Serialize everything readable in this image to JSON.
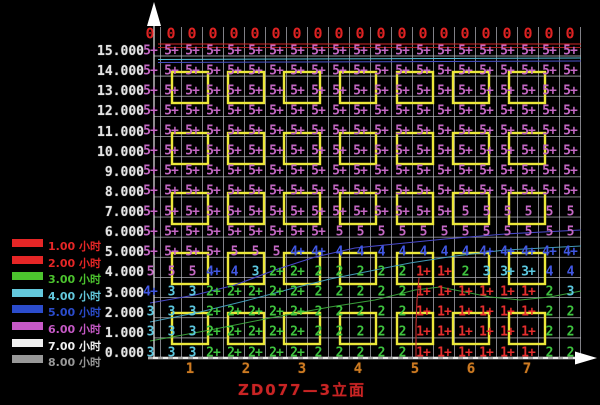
{
  "title": "ZD077—3立面",
  "legend": {
    "items": [
      {
        "label": "1.00 小时",
        "color": "#e62626"
      },
      {
        "label": "2.00 小时",
        "color": "#e62626"
      },
      {
        "label": "3.00 小时",
        "color": "#4cc42e"
      },
      {
        "label": "4.00 小时",
        "color": "#63c8dc"
      },
      {
        "label": "5.00 小时",
        "color": "#2b4ccc"
      },
      {
        "label": "6.00 小时",
        "color": "#c659c6"
      },
      {
        "label": "7.00 小时",
        "color": "#f0f0f0"
      },
      {
        "label": "8.00 小时",
        "color": "#989898"
      }
    ]
  },
  "y_axis": {
    "labels": [
      "15.000",
      "14.000",
      "13.000",
      "12.000",
      "11.000",
      "10.000",
      "9.000",
      "8.000",
      "7.000",
      "6.000",
      "5.000",
      "4.000",
      "3.000",
      "2.000",
      "1.000",
      "0.000"
    ]
  },
  "x_axis": {
    "labels": [
      "1",
      "2",
      "3",
      "4",
      "5",
      "6",
      "7"
    ]
  },
  "roof_row": {
    "values": [
      "0",
      "0",
      "0",
      "0",
      "0",
      "0",
      "0",
      "0",
      "0",
      "0",
      "0",
      "0",
      "0",
      "0",
      "0",
      "0",
      "0",
      "0",
      "0",
      "0",
      "0"
    ]
  },
  "chart_data": {
    "type": "heatmap",
    "title": "ZD077—3立面",
    "description": "Sunlight-hours analysis grid on a building elevation; each cell shows insolation hours at that point, colored by duration; yellow rectangles are window outlines.",
    "columns": 21,
    "value_colors": {
      "5": "#c468c4",
      "4": "#4157e3",
      "3": "#5cc8e0",
      "2": "#3fc43f",
      "1": "#e62e2e",
      "0": "#dd2222"
    },
    "rows": [
      {
        "level": "15.000",
        "values": [
          "5+",
          "5+",
          "5+",
          "5+",
          "5+",
          "5+",
          "5+",
          "5+",
          "5+",
          "5+",
          "5+",
          "5+",
          "5+",
          "5+",
          "5+",
          "5+",
          "5+",
          "5+",
          "5+",
          "5+",
          "5+"
        ]
      },
      {
        "level": "14.000",
        "values": [
          "5+",
          "5+",
          "5+",
          "5+",
          "5+",
          "5+",
          "5+",
          "5+",
          "5+",
          "5+",
          "5+",
          "5+",
          "5+",
          "5+",
          "5+",
          "5+",
          "5+",
          "5+",
          "5+",
          "5+",
          "5+"
        ]
      },
      {
        "level": "13.000",
        "values": [
          "5+",
          "5+",
          "5+",
          "5+",
          "5+",
          "5+",
          "5+",
          "5+",
          "5+",
          "5+",
          "5+",
          "5+",
          "5+",
          "5+",
          "5+",
          "5+",
          "5+",
          "5+",
          "5+",
          "5+",
          "5+"
        ]
      },
      {
        "level": "12.000",
        "values": [
          "5+",
          "5+",
          "5+",
          "5+",
          "5+",
          "5+",
          "5+",
          "5+",
          "5+",
          "5+",
          "5+",
          "5+",
          "5+",
          "5+",
          "5+",
          "5+",
          "5+",
          "5+",
          "5+",
          "5+",
          "5+"
        ]
      },
      {
        "level": "11.000",
        "values": [
          "5+",
          "5+",
          "5+",
          "5+",
          "5+",
          "5+",
          "5+",
          "5+",
          "5+",
          "5+",
          "5+",
          "5+",
          "5+",
          "5+",
          "5+",
          "5+",
          "5+",
          "5+",
          "5+",
          "5+",
          "5+"
        ]
      },
      {
        "level": "10.000",
        "values": [
          "5+",
          "5+",
          "5+",
          "5+",
          "5+",
          "5+",
          "5+",
          "5+",
          "5+",
          "5+",
          "5+",
          "5+",
          "5+",
          "5+",
          "5+",
          "5+",
          "5+",
          "5+",
          "5+",
          "5+",
          "5+"
        ]
      },
      {
        "level": "9.000",
        "values": [
          "5+",
          "5+",
          "5+",
          "5+",
          "5+",
          "5+",
          "5+",
          "5+",
          "5+",
          "5+",
          "5+",
          "5+",
          "5+",
          "5+",
          "5+",
          "5+",
          "5+",
          "5+",
          "5+",
          "5+",
          "5+"
        ]
      },
      {
        "level": "8.000",
        "values": [
          "5+",
          "5+",
          "5+",
          "5+",
          "5+",
          "5+",
          "5+",
          "5+",
          "5+",
          "5+",
          "5+",
          "5+",
          "5+",
          "5+",
          "5+",
          "5+",
          "5+",
          "5+",
          "5+",
          "5+",
          "5+"
        ]
      },
      {
        "level": "7.000",
        "values": [
          "5+",
          "5+",
          "5+",
          "5+",
          "5+",
          "5+",
          "5+",
          "5+",
          "5+",
          "5+",
          "5+",
          "5+",
          "5+",
          "5+",
          "5+",
          "5",
          "5",
          "5",
          "5",
          "5",
          "5"
        ]
      },
      {
        "level": "6.000",
        "values": [
          "5+",
          "5+",
          "5+",
          "5+",
          "5+",
          "5+",
          "5+",
          "5+",
          "5+",
          "5",
          "5",
          "5",
          "5",
          "5",
          "5",
          "5",
          "5",
          "5",
          "5",
          "5",
          "5"
        ]
      },
      {
        "level": "5.000",
        "values": [
          "5+",
          "5+",
          "5+",
          "5+",
          "5",
          "5",
          "5",
          "4+",
          "4+",
          "4",
          "4",
          "4",
          "4",
          "4",
          "4",
          "4",
          "4+",
          "4+",
          "4+",
          "4+",
          "4+"
        ]
      },
      {
        "level": "4.000",
        "values": [
          "5",
          "5",
          "5",
          "4+",
          "4",
          "3",
          "2+",
          "2+",
          "2",
          "2",
          "2",
          "2",
          "2",
          "1+",
          "1+",
          "2",
          "3",
          "3+",
          "3+",
          "4",
          "4"
        ]
      },
      {
        "level": "3.000",
        "values": [
          "4+",
          "3",
          "3",
          "2+",
          "2+",
          "2+",
          "2+",
          "2+",
          "2",
          "2",
          "2",
          "2",
          "2",
          "1+",
          "1+",
          "1+",
          "1+",
          "1+",
          "1+",
          "2",
          "3"
        ]
      },
      {
        "level": "2.000",
        "values": [
          "3",
          "3",
          "3",
          "2+",
          "2+",
          "2+",
          "2+",
          "2+",
          "2",
          "2",
          "2",
          "2",
          "2",
          "1+",
          "1+",
          "1+",
          "1+",
          "1+",
          "1+",
          "2",
          "2"
        ]
      },
      {
        "level": "1.000",
        "values": [
          "3",
          "3",
          "3",
          "2+",
          "2+",
          "2+",
          "2+",
          "2+",
          "2",
          "2",
          "2",
          "2",
          "2",
          "1+",
          "1+",
          "1+",
          "1+",
          "1+",
          "1+",
          "2",
          "2"
        ]
      },
      {
        "level": "0.000",
        "values": [
          "3",
          "3",
          "3",
          "2+",
          "2+",
          "2+",
          "2+",
          "2+",
          "2",
          "2",
          "2",
          "2",
          "2",
          "1+",
          "1+",
          "1+",
          "1+",
          "1+",
          "1+",
          "2",
          "2"
        ]
      }
    ]
  }
}
